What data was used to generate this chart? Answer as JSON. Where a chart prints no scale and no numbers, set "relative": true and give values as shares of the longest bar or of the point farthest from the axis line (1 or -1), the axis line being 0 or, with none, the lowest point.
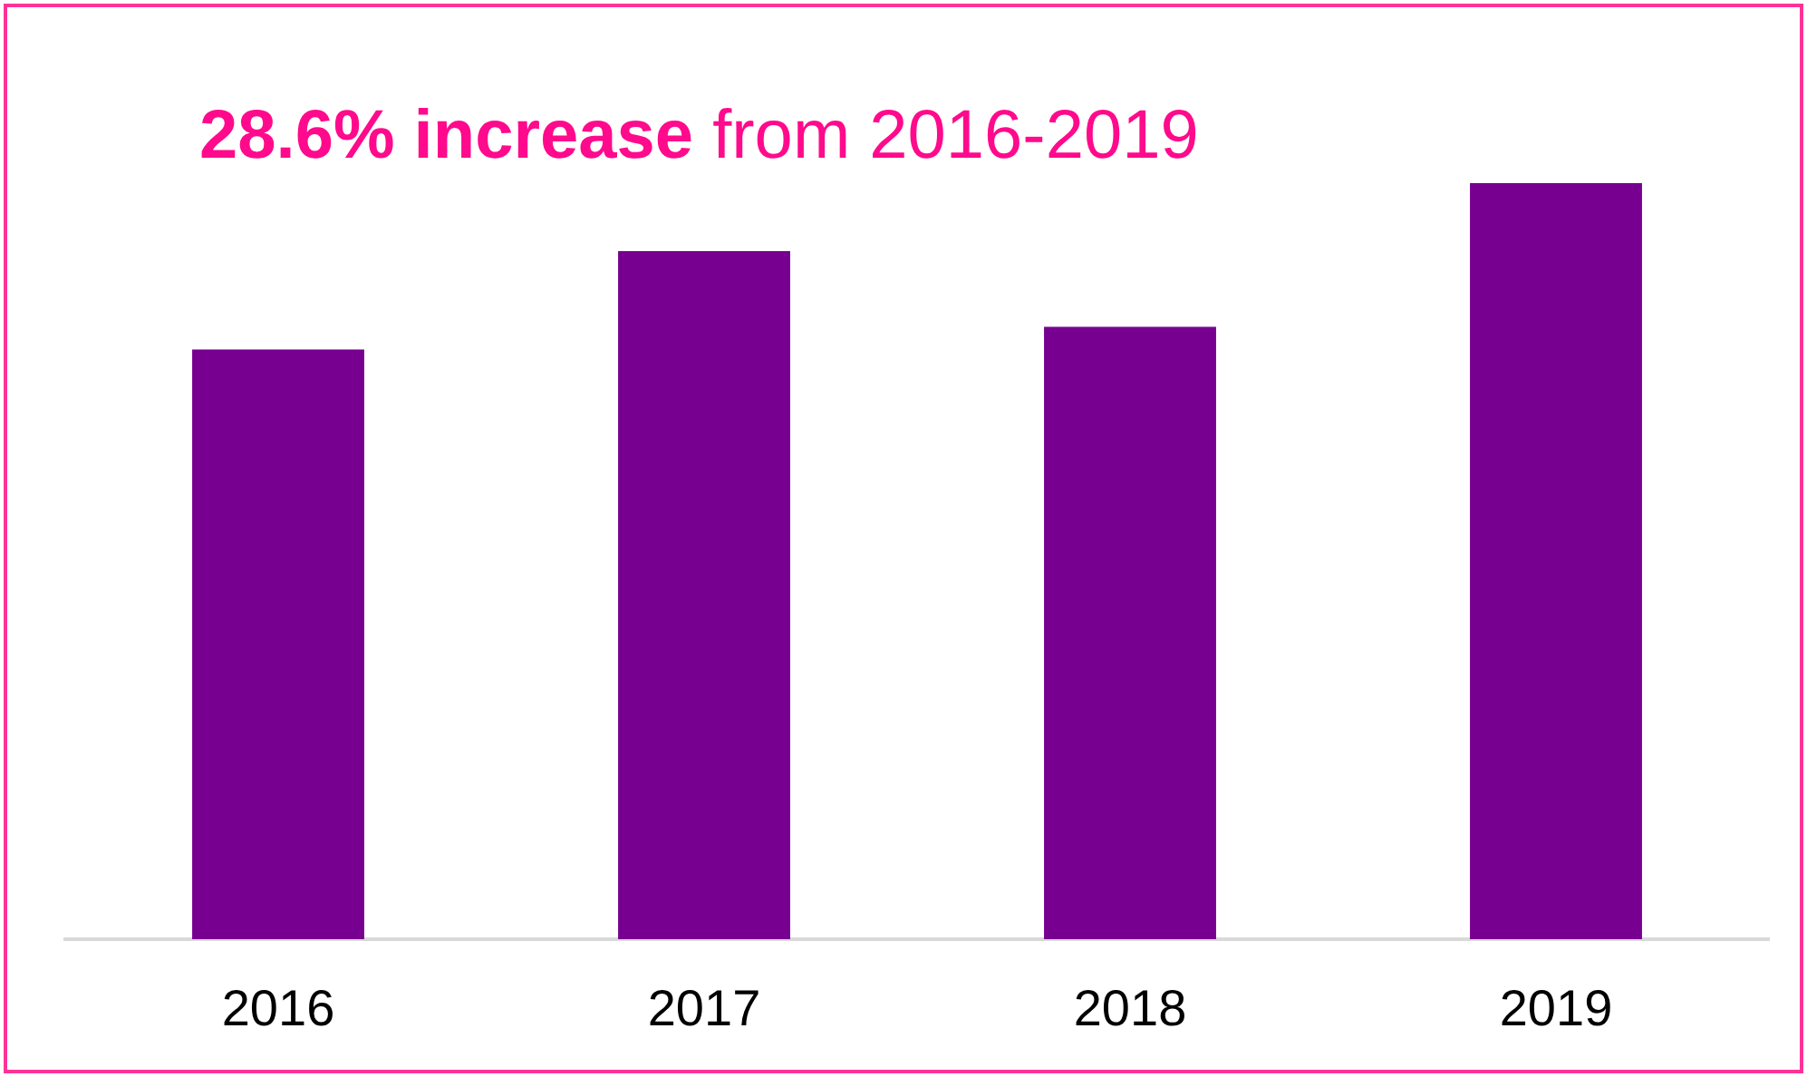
{
  "chart_data": {
    "type": "bar",
    "title": "28.6% increase from 2016-2019",
    "categories": [
      "2016",
      "2017",
      "2018",
      "2019"
    ],
    "values": [
      0.78,
      0.91,
      0.81,
      1
    ],
    "color": "#780091",
    "relative": true
  }
}
